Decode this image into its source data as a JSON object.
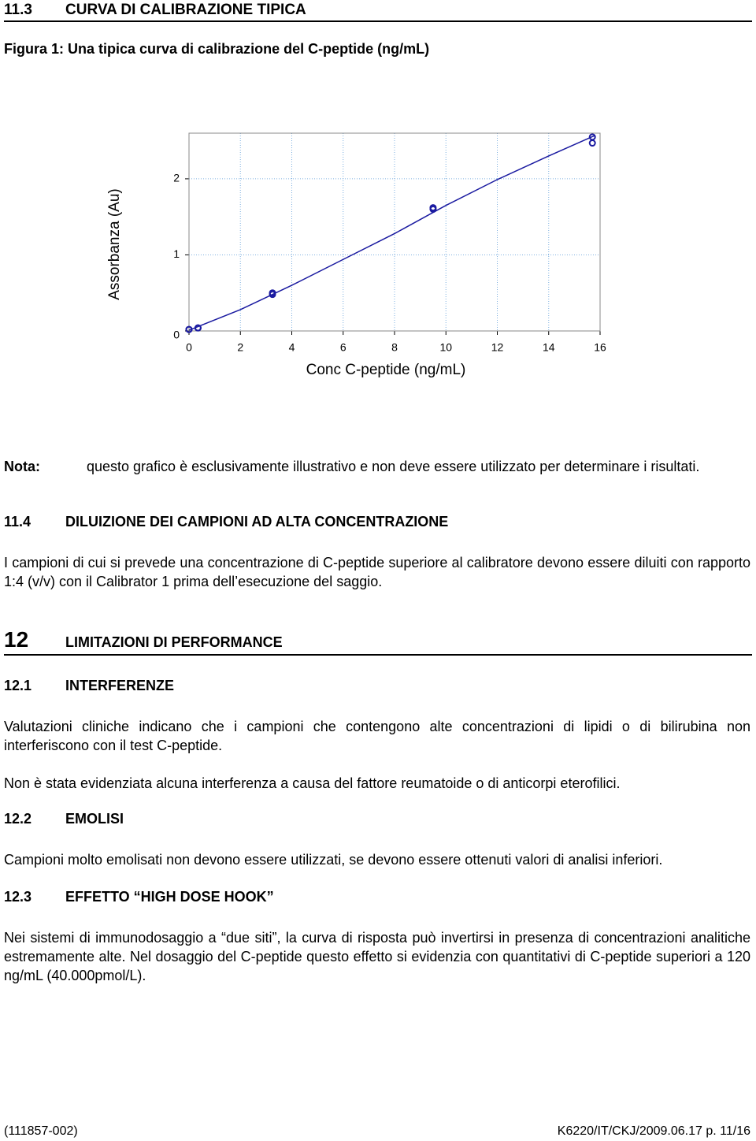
{
  "header": {
    "number": "11.3",
    "title": "CURVA DI CALIBRAZIONE TIPICA"
  },
  "figure_caption": "Figura 1: Una tipica curva di calibrazione del C-peptide (ng/mL)",
  "chart_data": {
    "type": "scatter",
    "x_label": "Conc C-peptide (ng/mL)",
    "y_label": "Assorbanza (Au)",
    "x": [
      0,
      0,
      0.35,
      0.35,
      3.25,
      3.25,
      9.5,
      9.5,
      15.7,
      15.7
    ],
    "values": [
      0.02,
      0.02,
      0.04,
      0.04,
      0.48,
      0.5,
      1.6,
      1.62,
      2.47,
      2.55
    ],
    "color": "#1a1aa0",
    "curve": {
      "x": [
        0,
        2,
        4,
        6,
        8,
        10,
        12,
        14,
        15.8
      ],
      "values": [
        0.01,
        0.28,
        0.6,
        0.94,
        1.28,
        1.65,
        1.99,
        2.3,
        2.57
      ],
      "color": "#1a1aa0"
    },
    "xlim": [
      0,
      16
    ],
    "xticks": [
      0,
      2,
      4,
      6,
      8,
      10,
      12,
      14,
      16
    ],
    "ylim": [
      0,
      2.6
    ],
    "yticks": [
      0,
      1,
      2
    ],
    "grid": true,
    "grid_color": "#7fb0e0"
  },
  "note": {
    "label": "Nota:",
    "text": "questo grafico è esclusivamente illustrativo e non deve essere utilizzato per determinare i risultati."
  },
  "sections": [
    {
      "number": "11.4",
      "title": "DILUIZIONE DEI CAMPIONI AD ALTA CONCENTRAZIONE",
      "paragraphs": [
        "I campioni di cui si prevede una concentrazione di C-peptide superiore al calibratore devono essere diluiti con rapporto 1:4 (v/v) con il Calibrator 1 prima dell’esecuzione del saggio."
      ]
    },
    {
      "number": "12",
      "title": "LIMITAZIONI DI PERFORMANCE",
      "paragraphs": []
    },
    {
      "number": "12.1",
      "title": "INTERFERENZE",
      "paragraphs": [
        "Valutazioni cliniche indicano che i campioni che contengono alte concentrazioni di lipidi o di bilirubina non interferiscono con il test C-peptide.",
        "Non è stata evidenziata alcuna interferenza a causa del fattore reumatoide o di anticorpi eterofilici."
      ]
    },
    {
      "number": "12.2",
      "title": "EMOLISI",
      "paragraphs": [
        "Campioni molto emolisati non devono essere utilizzati, se devono essere ottenuti valori di analisi inferiori."
      ]
    },
    {
      "number": "12.3",
      "title": "EFFETTO “HIGH DOSE HOOK”",
      "paragraphs": [
        "Nei sistemi di immunodosaggio a “due siti”, la curva di risposta può invertirsi in presenza di concentrazioni analitiche estremamente alte. Nel dosaggio del C-peptide questo effetto si evidenzia con quantitativi di C-peptide superiori a 120 ng/mL (40.000pmol/L)."
      ]
    }
  ],
  "footer": {
    "left": "(111857-002)",
    "right": "K6220/IT/CKJ/2009.06.17 p. 11/16"
  }
}
